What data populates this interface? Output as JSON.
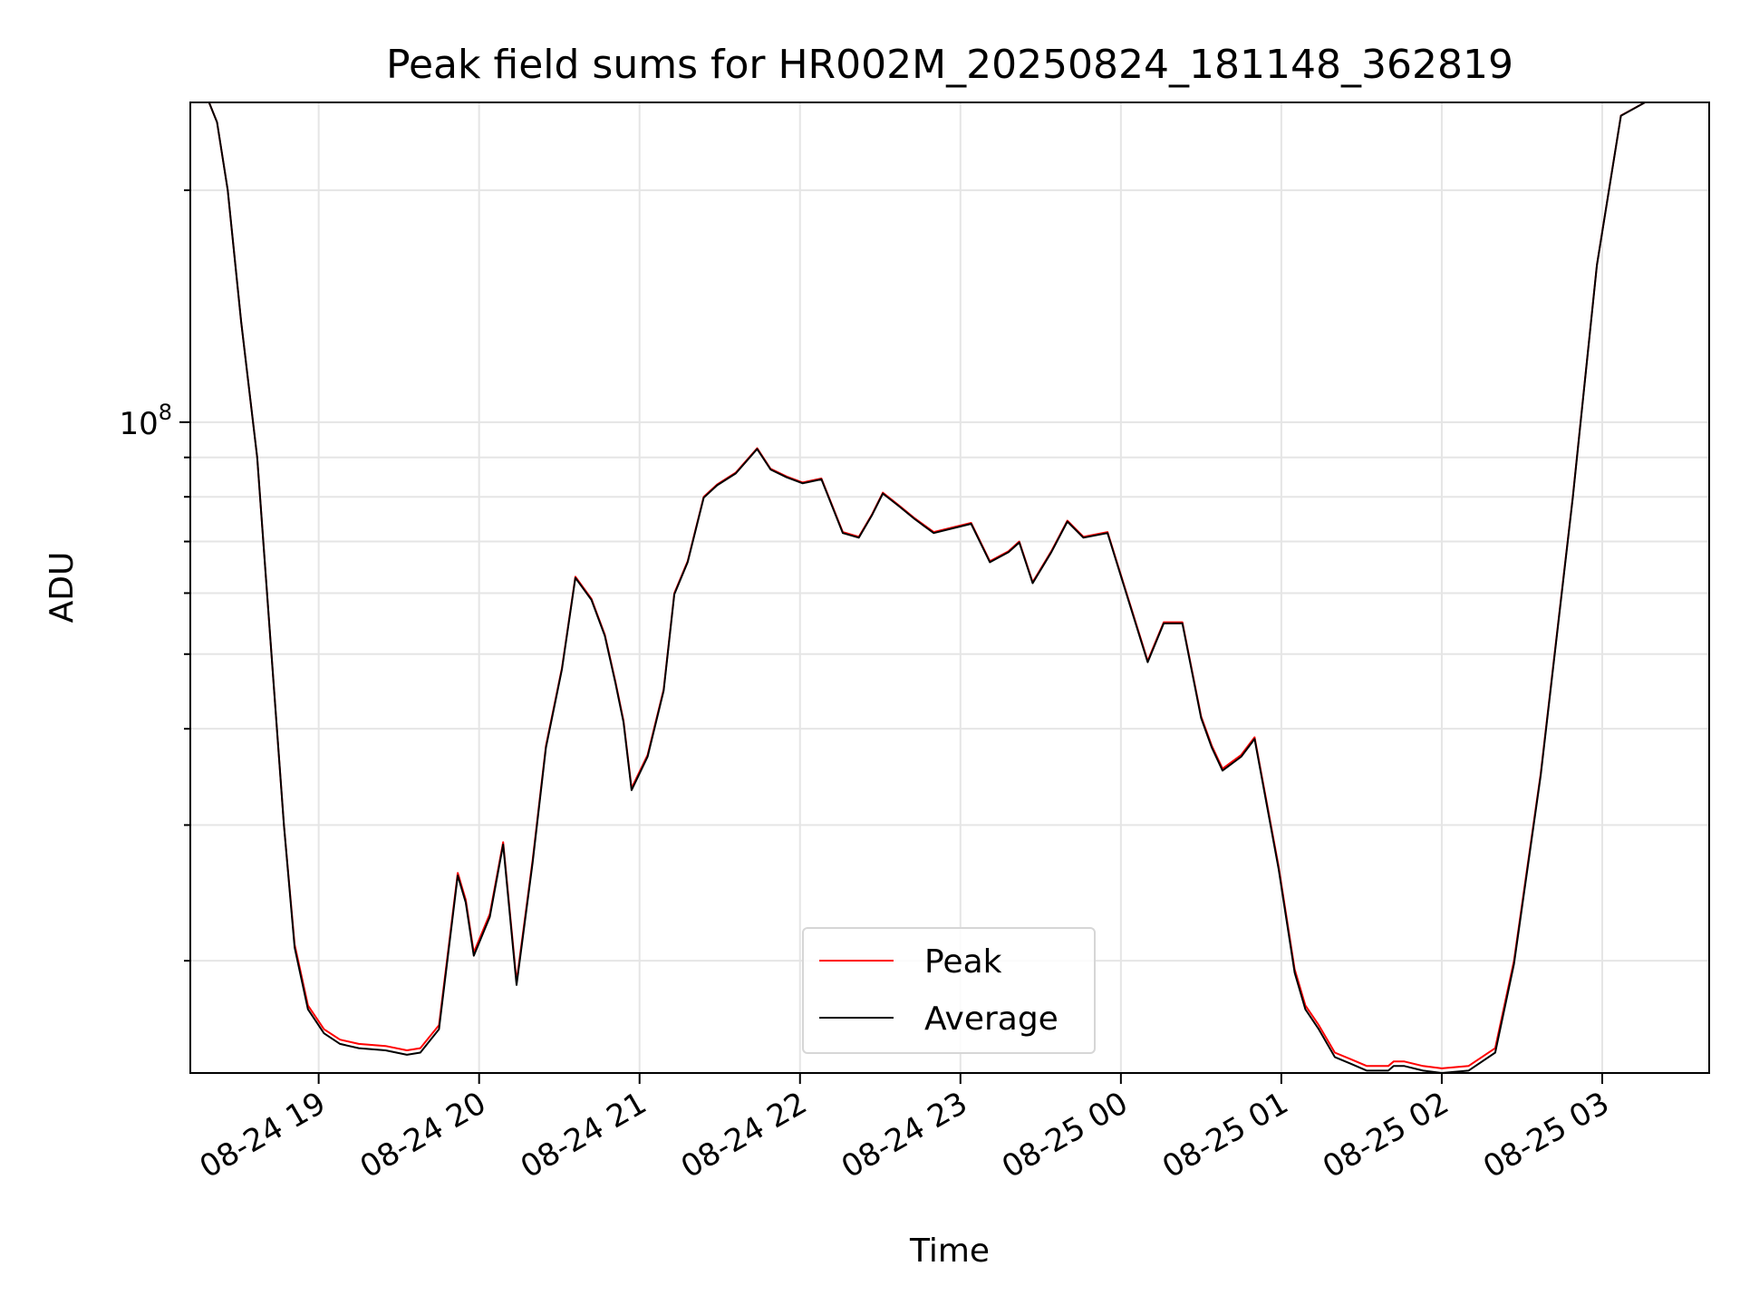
{
  "chart_data": {
    "type": "line",
    "title": "Peak field sums for HR002M_20250824_181148_362819",
    "xlabel": "Time",
    "ylabel": "ADU",
    "y_scale": "log",
    "grid": true,
    "legend_position": "lower-center",
    "xlim": [
      "2025-08-24 18:12",
      "2025-08-25 03:40"
    ],
    "ylim": [
      14300000,
      260000000
    ],
    "x_tick_labels": [
      "08-24 19",
      "08-24 20",
      "08-24 21",
      "08-24 22",
      "08-24 23",
      "08-25 00",
      "08-25 01",
      "08-25 02",
      "08-25 03"
    ],
    "x_ticks": [
      "2025-08-24 19:00",
      "2025-08-24 20:00",
      "2025-08-24 21:00",
      "2025-08-24 22:00",
      "2025-08-24 23:00",
      "2025-08-25 00:00",
      "2025-08-25 01:00",
      "2025-08-25 02:00",
      "2025-08-25 03:00"
    ],
    "y_tick_labels": [
      {
        "base": "10",
        "exp": "8"
      }
    ],
    "y_major_ticks": [
      100000000
    ],
    "y_minor_ticks": [
      20000000,
      30000000,
      40000000,
      50000000,
      60000000,
      70000000,
      80000000,
      90000000,
      200000000
    ],
    "series": [
      {
        "name": "Peak",
        "color": "#ff0000",
        "x": [
          "2025-08-24 18:12",
          "2025-08-24 18:19",
          "2025-08-24 18:22",
          "2025-08-24 18:26",
          "2025-08-24 18:31",
          "2025-08-24 18:37",
          "2025-08-24 18:42",
          "2025-08-24 18:47",
          "2025-08-24 18:51",
          "2025-08-24 18:56",
          "2025-08-24 19:02",
          "2025-08-24 19:08",
          "2025-08-24 19:15",
          "2025-08-24 19:25",
          "2025-08-24 19:33",
          "2025-08-24 19:38",
          "2025-08-24 19:45",
          "2025-08-24 19:52",
          "2025-08-24 19:55",
          "2025-08-24 19:58",
          "2025-08-24 20:04",
          "2025-08-24 20:09",
          "2025-08-24 20:14",
          "2025-08-24 20:20",
          "2025-08-24 20:25",
          "2025-08-24 20:31",
          "2025-08-24 20:36",
          "2025-08-24 20:42",
          "2025-08-24 20:47",
          "2025-08-24 20:51",
          "2025-08-24 20:54",
          "2025-08-24 20:57",
          "2025-08-24 21:03",
          "2025-08-24 21:09",
          "2025-08-24 21:13",
          "2025-08-24 21:18",
          "2025-08-24 21:24",
          "2025-08-24 21:29",
          "2025-08-24 21:36",
          "2025-08-24 21:44",
          "2025-08-24 21:49",
          "2025-08-24 21:55",
          "2025-08-24 22:01",
          "2025-08-24 22:08",
          "2025-08-24 22:16",
          "2025-08-24 22:22",
          "2025-08-24 22:27",
          "2025-08-24 22:31",
          "2025-08-24 22:37",
          "2025-08-24 22:43",
          "2025-08-24 22:50",
          "2025-08-24 23:04",
          "2025-08-24 23:11",
          "2025-08-24 23:18",
          "2025-08-24 23:22",
          "2025-08-24 23:27",
          "2025-08-24 23:34",
          "2025-08-24 23:40",
          "2025-08-24 23:46",
          "2025-08-24 23:55",
          "2025-08-25 00:10",
          "2025-08-25 00:16",
          "2025-08-25 00:23",
          "2025-08-25 00:30",
          "2025-08-25 00:34",
          "2025-08-25 00:38",
          "2025-08-25 00:45",
          "2025-08-25 00:50",
          "2025-08-25 00:59",
          "2025-08-25 01:05",
          "2025-08-25 01:09",
          "2025-08-25 01:14",
          "2025-08-25 01:20",
          "2025-08-25 01:26",
          "2025-08-25 01:32",
          "2025-08-25 01:36",
          "2025-08-25 01:40",
          "2025-08-25 01:42",
          "2025-08-25 01:46",
          "2025-08-25 01:53",
          "2025-08-25 02:00",
          "2025-08-25 02:10",
          "2025-08-25 02:20",
          "2025-08-25 02:27",
          "2025-08-25 02:37",
          "2025-08-25 02:49",
          "2025-08-25 02:58",
          "2025-08-25 03:07",
          "2025-08-25 03:16",
          "2025-08-25 03:21",
          "2025-08-25 03:25",
          "2025-08-25 03:40"
        ],
        "y": [
          260000000,
          260000000,
          245000000,
          200000000,
          135000000,
          90000000,
          52000000,
          30000000,
          21000000,
          17500000,
          16300000,
          15800000,
          15600000,
          15500000,
          15300000,
          15400000,
          16500000,
          26000000,
          24000000,
          20500000,
          23000000,
          28500000,
          18800000,
          27000000,
          38000000,
          48000000,
          63000000,
          59000000,
          53000000,
          46000000,
          41000000,
          33500000,
          37000000,
          45000000,
          60000000,
          66000000,
          80000000,
          83000000,
          86000000,
          92500000,
          87000000,
          85000000,
          83500000,
          84500000,
          72000000,
          71000000,
          76000000,
          81000000,
          78000000,
          75000000,
          72000000,
          74000000,
          66000000,
          68000000,
          70000000,
          62000000,
          68000000,
          74500000,
          71000000,
          72000000,
          49000000,
          55000000,
          55000000,
          41500000,
          38000000,
          35500000,
          37000000,
          39000000,
          26500000,
          19500000,
          17500000,
          16500000,
          15200000,
          14900000,
          14600000,
          14600000,
          14600000,
          14800000,
          14800000,
          14600000,
          14500000,
          14600000,
          15400000,
          20000000,
          35000000,
          80000000,
          160000000,
          250000000,
          260000000,
          260000000,
          260000000,
          260000000
        ]
      },
      {
        "name": "Average",
        "color": "#000000",
        "x": [
          "2025-08-24 18:12",
          "2025-08-24 18:19",
          "2025-08-24 18:22",
          "2025-08-24 18:26",
          "2025-08-24 18:31",
          "2025-08-24 18:37",
          "2025-08-24 18:42",
          "2025-08-24 18:47",
          "2025-08-24 18:51",
          "2025-08-24 18:56",
          "2025-08-24 19:02",
          "2025-08-24 19:08",
          "2025-08-24 19:15",
          "2025-08-24 19:25",
          "2025-08-24 19:33",
          "2025-08-24 19:38",
          "2025-08-24 19:45",
          "2025-08-24 19:52",
          "2025-08-24 19:55",
          "2025-08-24 19:58",
          "2025-08-24 20:04",
          "2025-08-24 20:09",
          "2025-08-24 20:14",
          "2025-08-24 20:20",
          "2025-08-24 20:25",
          "2025-08-24 20:31",
          "2025-08-24 20:36",
          "2025-08-24 20:42",
          "2025-08-24 20:47",
          "2025-08-24 20:51",
          "2025-08-24 20:54",
          "2025-08-24 20:57",
          "2025-08-24 21:03",
          "2025-08-24 21:09",
          "2025-08-24 21:13",
          "2025-08-24 21:18",
          "2025-08-24 21:24",
          "2025-08-24 21:29",
          "2025-08-24 21:36",
          "2025-08-24 21:44",
          "2025-08-24 21:49",
          "2025-08-24 21:55",
          "2025-08-24 22:01",
          "2025-08-24 22:08",
          "2025-08-24 22:16",
          "2025-08-24 22:22",
          "2025-08-24 22:27",
          "2025-08-24 22:31",
          "2025-08-24 22:37",
          "2025-08-24 22:43",
          "2025-08-24 22:50",
          "2025-08-24 23:04",
          "2025-08-24 23:11",
          "2025-08-24 23:18",
          "2025-08-24 23:22",
          "2025-08-24 23:27",
          "2025-08-24 23:34",
          "2025-08-24 23:40",
          "2025-08-24 23:46",
          "2025-08-24 23:55",
          "2025-08-25 00:10",
          "2025-08-25 00:16",
          "2025-08-25 00:23",
          "2025-08-25 00:30",
          "2025-08-25 00:34",
          "2025-08-25 00:38",
          "2025-08-25 00:45",
          "2025-08-25 00:50",
          "2025-08-25 00:59",
          "2025-08-25 01:05",
          "2025-08-25 01:09",
          "2025-08-25 01:14",
          "2025-08-25 01:20",
          "2025-08-25 01:26",
          "2025-08-25 01:32",
          "2025-08-25 01:36",
          "2025-08-25 01:40",
          "2025-08-25 01:42",
          "2025-08-25 01:46",
          "2025-08-25 01:53",
          "2025-08-25 02:00",
          "2025-08-25 02:10",
          "2025-08-25 02:20",
          "2025-08-25 02:27",
          "2025-08-25 02:37",
          "2025-08-25 02:49",
          "2025-08-25 02:58",
          "2025-08-25 03:07",
          "2025-08-25 03:16",
          "2025-08-25 03:21",
          "2025-08-25 03:25",
          "2025-08-25 03:40"
        ],
        "y": [
          260000000,
          260000000,
          245000000,
          200000000,
          135000000,
          90000000,
          52000000,
          30000000,
          20800000,
          17300000,
          16100000,
          15600000,
          15400000,
          15300000,
          15100000,
          15200000,
          16300000,
          25800000,
          23800000,
          20300000,
          22800000,
          28300000,
          18600000,
          26800000,
          37800000,
          47800000,
          62800000,
          58800000,
          52800000,
          45800000,
          40800000,
          33300000,
          36800000,
          44800000,
          59800000,
          65800000,
          79800000,
          82800000,
          85800000,
          92300000,
          86800000,
          84800000,
          83300000,
          84300000,
          71800000,
          70800000,
          75800000,
          80800000,
          77800000,
          74800000,
          71800000,
          73800000,
          65800000,
          67800000,
          69800000,
          61800000,
          67800000,
          74300000,
          70800000,
          71800000,
          48800000,
          54800000,
          54800000,
          41300000,
          37800000,
          35300000,
          36800000,
          38800000,
          26300000,
          19300000,
          17300000,
          16300000,
          15000000,
          14700000,
          14400000,
          14400000,
          14400000,
          14600000,
          14600000,
          14400000,
          14300000,
          14400000,
          15200000,
          19800000,
          34800000,
          79800000,
          159800000,
          249800000,
          260000000,
          260000000,
          260000000,
          260000000
        ]
      }
    ]
  }
}
